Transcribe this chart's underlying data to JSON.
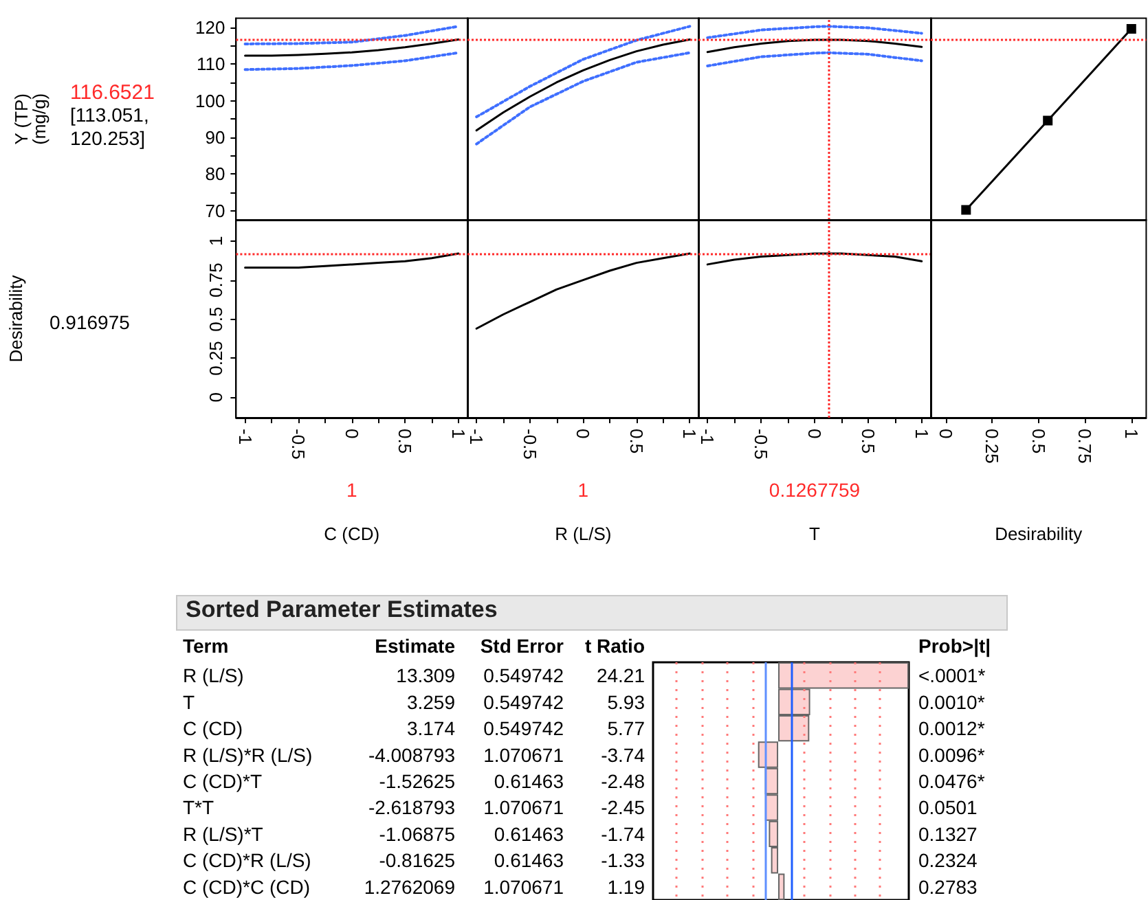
{
  "chart_data": [
    {
      "type": "line",
      "ylabel": "Y (TP) (mg/g)",
      "annotations": [
        "116.6521",
        "[113.051, 120.253]"
      ],
      "tick_labels": "y",
      "marker": "none",
      "xlim": [
        -1.085,
        1.085
      ],
      "ylim": [
        67.5,
        122.5
      ],
      "yticks": [
        70,
        {
          "value": 75,
          "label": null
        },
        80,
        {
          "value": 85,
          "label": null
        },
        90,
        {
          "value": 95,
          "label": null
        },
        100,
        {
          "value": 105,
          "label": null
        },
        110,
        {
          "value": 115,
          "label": null
        },
        120
      ],
      "ref_lines": [
        {
          "axis": "y",
          "value": 116.6521,
          "color": "#ff2a2a",
          "line_style": "dotted"
        }
      ],
      "series": [
        {
          "color": "#000000",
          "line_style": "solid",
          "x": [
            -1,
            -0.75,
            -0.5,
            -0.25,
            0,
            0.25,
            0.5,
            0.75,
            1
          ],
          "values": [
            112.3,
            112.3,
            112.5,
            112.8,
            113.2,
            113.8,
            114.6,
            115.6,
            116.7
          ]
        },
        {
          "color": "#3f6fff",
          "line_style": "dotted",
          "x": [
            -1,
            -0.5,
            0,
            0.5,
            1
          ],
          "values": [
            108.5,
            108.8,
            109.6,
            110.9,
            113.1
          ]
        },
        {
          "color": "#3f6fff",
          "line_style": "dotted",
          "x": [
            -1,
            -0.5,
            0,
            0.5,
            1
          ],
          "values": [
            115.5,
            115.6,
            116,
            117.8,
            120.3
          ]
        }
      ]
    },
    {
      "type": "line",
      "tick_labels": false,
      "marker": "none",
      "xlim": [
        -1.085,
        1.085
      ],
      "ylim": [
        67.5,
        122.5
      ],
      "ref_lines": [
        {
          "axis": "y",
          "value": 116.6521,
          "color": "#ff2a2a",
          "line_style": "dotted"
        }
      ],
      "series": [
        {
          "color": "#000000",
          "line_style": "solid",
          "x": [
            -1,
            -0.75,
            -0.5,
            -0.25,
            0,
            0.25,
            0.5,
            0.75,
            1
          ],
          "values": [
            91.9,
            96.8,
            101.1,
            105,
            108.3,
            111.1,
            113.5,
            115.3,
            116.7
          ]
        },
        {
          "color": "#3f6fff",
          "line_style": "dotted",
          "x": [
            -1,
            -0.5,
            0,
            0.5,
            1
          ],
          "values": [
            88.2,
            98.3,
            105.3,
            110.5,
            113.1
          ]
        },
        {
          "color": "#3f6fff",
          "line_style": "dotted",
          "x": [
            -1,
            -0.5,
            0,
            0.5,
            1
          ],
          "values": [
            95.6,
            103.9,
            111.3,
            116.5,
            120.3
          ]
        }
      ]
    },
    {
      "type": "line",
      "tick_labels": false,
      "marker": "none",
      "xlim": [
        -1.085,
        1.085
      ],
      "ylim": [
        67.5,
        122.5
      ],
      "ref_lines": [
        {
          "axis": "y",
          "value": 116.6521,
          "color": "#ff2a2a",
          "line_style": "dotted"
        },
        {
          "axis": "x",
          "value": 0.1267759,
          "color": "#ff2a2a",
          "line_style": "dotted"
        }
      ],
      "series": [
        {
          "color": "#000000",
          "line_style": "solid",
          "x": [
            -1,
            -0.75,
            -0.5,
            -0.25,
            0,
            0.25,
            0.5,
            0.75,
            1
          ],
          "values": [
            113.3,
            114.6,
            115.6,
            116.3,
            116.6,
            116.6,
            116.3,
            115.6,
            114.7
          ]
        },
        {
          "color": "#3f6fff",
          "line_style": "dotted",
          "x": [
            -1,
            -0.5,
            0,
            0.1267759,
            0.5,
            1
          ],
          "values": [
            109.5,
            112,
            113,
            113.1,
            112.7,
            110.9
          ]
        },
        {
          "color": "#3f6fff",
          "line_style": "dotted",
          "x": [
            -1,
            -0.5,
            0,
            0.1267759,
            0.5,
            1
          ],
          "values": [
            117.2,
            119.3,
            120.2,
            120.3,
            119.9,
            118.4
          ]
        }
      ]
    },
    {
      "type": "line",
      "tick_labels": false,
      "marker": "square",
      "xlim": [
        -0.08,
        1.08
      ],
      "ylim": [
        67.5,
        122.5
      ],
      "ref_lines": [
        {
          "axis": "y",
          "value": 116.6521,
          "color": "#ff2a2a",
          "line_style": "dotted"
        }
      ],
      "series": [
        {
          "color": "#000000",
          "line_style": "solid",
          "x": [
            0.11,
            0.55,
            1
          ],
          "values": [
            70.2,
            94.6,
            119.6
          ]
        }
      ]
    },
    {
      "type": "line",
      "ylabel": "Desirability",
      "annotations": [
        "0.916975",
        "1"
      ],
      "marker": "none",
      "xlabel": "C (CD)",
      "xlim": [
        -1.085,
        1.085
      ],
      "xticks": [
        -1,
        {
          "value": -0.75,
          "label": null
        },
        -0.5,
        {
          "value": -0.25,
          "label": null
        },
        0,
        {
          "value": 0.25,
          "label": null
        },
        0.5,
        {
          "value": 0.75,
          "label": null
        },
        1
      ],
      "ylim": [
        -0.13,
        1.135
      ],
      "yticks": [
        0,
        0.25,
        0.5,
        0.75,
        1
      ],
      "ref_lines": [
        {
          "axis": "y",
          "value": 0.916975,
          "color": "#ff2a2a",
          "line_style": "dotted"
        }
      ],
      "series": [
        {
          "color": "#000000",
          "line_style": "solid",
          "x": [
            -1,
            -0.75,
            -0.5,
            -0.25,
            0,
            0.25,
            0.5,
            0.75,
            1
          ],
          "values": [
            0.83,
            0.83,
            0.83,
            0.84,
            0.85,
            0.86,
            0.87,
            0.89,
            0.92
          ]
        }
      ]
    },
    {
      "type": "line",
      "tick_labels": "x",
      "annotations": [
        "1"
      ],
      "marker": "none",
      "xlabel": "R (L/S)",
      "xlim": [
        -1.085,
        1.085
      ],
      "xticks": [
        -1,
        {
          "value": -0.75,
          "label": null
        },
        -0.5,
        {
          "value": -0.25,
          "label": null
        },
        0,
        {
          "value": 0.25,
          "label": null
        },
        0.5,
        {
          "value": 0.75,
          "label": null
        },
        1
      ],
      "ylim": [
        -0.13,
        1.135
      ],
      "ref_lines": [
        {
          "axis": "y",
          "value": 0.916975,
          "color": "#ff2a2a",
          "line_style": "dotted"
        }
      ],
      "series": [
        {
          "color": "#000000",
          "line_style": "solid",
          "x": [
            -1,
            -0.75,
            -0.5,
            -0.25,
            0,
            0.25,
            0.5,
            0.75,
            1
          ],
          "values": [
            0.44,
            0.53,
            0.61,
            0.69,
            0.75,
            0.81,
            0.86,
            0.89,
            0.92
          ]
        }
      ]
    },
    {
      "type": "line",
      "tick_labels": "x",
      "annotations": [
        "0.1267759"
      ],
      "marker": "none",
      "xlabel": "T",
      "xlim": [
        -1.085,
        1.085
      ],
      "xticks": [
        -1,
        {
          "value": -0.75,
          "label": null
        },
        -0.5,
        {
          "value": -0.25,
          "label": null
        },
        0,
        {
          "value": 0.25,
          "label": null
        },
        0.5,
        {
          "value": 0.75,
          "label": null
        },
        1
      ],
      "ylim": [
        -0.13,
        1.135
      ],
      "ref_lines": [
        {
          "axis": "y",
          "value": 0.916975,
          "color": "#ff2a2a",
          "line_style": "dotted"
        },
        {
          "axis": "x",
          "value": 0.1267759,
          "color": "#ff2a2a",
          "line_style": "dotted"
        }
      ],
      "series": [
        {
          "color": "#000000",
          "line_style": "solid",
          "x": [
            -1,
            -0.75,
            -0.5,
            -0.25,
            0,
            0.25,
            0.5,
            0.75,
            1
          ],
          "values": [
            0.85,
            0.88,
            0.9,
            0.91,
            0.92,
            0.92,
            0.91,
            0.9,
            0.87
          ]
        }
      ]
    },
    {
      "type": "line",
      "tick_labels": "x",
      "xlabel": "Desirability",
      "xlim": [
        -0.08,
        1.08
      ],
      "xticks": [
        0,
        0.25,
        0.5,
        0.75,
        1
      ],
      "ylim": [
        -0.13,
        1.135
      ]
    },
    {
      "type": "bar",
      "orientation": "horizontal",
      "title": "Sorted Parameter Estimates",
      "categories": [
        "R (L/S)",
        "T",
        "C (CD)",
        "R (L/S)*R (L/S)",
        "C (CD)*T",
        "T*T",
        "R (L/S)*T",
        "C (CD)*R (L/S)",
        "C (CD)*C (CD)"
      ],
      "values": [
        24.21,
        5.93,
        5.77,
        -3.74,
        -2.48,
        -2.45,
        -1.74,
        -1.33,
        1.19
      ],
      "color": "#fcd2d2",
      "data_labels": true,
      "xlim": [
        -23.2,
        24.21
      ],
      "xticks": [
        {
          "value": -18.9,
          "label": null
        },
        {
          "value": -14.2,
          "label": null
        },
        {
          "value": -9.5,
          "label": null
        },
        {
          "value": -4.7,
          "label": null
        },
        {
          "value": 4.7,
          "label": null
        },
        {
          "value": 9.5,
          "label": null
        },
        {
          "value": 14.2,
          "label": null
        },
        {
          "value": 18.9,
          "label": null
        }
      ],
      "grid": "x",
      "ref_lines": [
        {
          "axis": "x",
          "value": -2.45,
          "color": "#5f8fff"
        },
        {
          "axis": "x",
          "value": 2.45,
          "color": "#1f5fff"
        }
      ],
      "annotations": [
        "Term",
        "Estimate",
        "Std Error",
        "t Ratio",
        "Prob>|t|",
        "13.309",
        "3.259",
        "3.174",
        "-4.008793",
        "-1.52625",
        "-2.618793",
        "-1.06875",
        "-0.81625",
        "1.2762069",
        "0.549742",
        "0.549742",
        "0.549742",
        "1.070671",
        "0.61463",
        "1.070671",
        "0.61463",
        "0.61463",
        "1.070671",
        "<.0001*",
        "0.0010*",
        "0.0012*",
        "0.0096*",
        "0.0476*",
        "0.0501",
        "0.1327",
        "0.2324",
        "0.2783"
      ]
    }
  ]
}
